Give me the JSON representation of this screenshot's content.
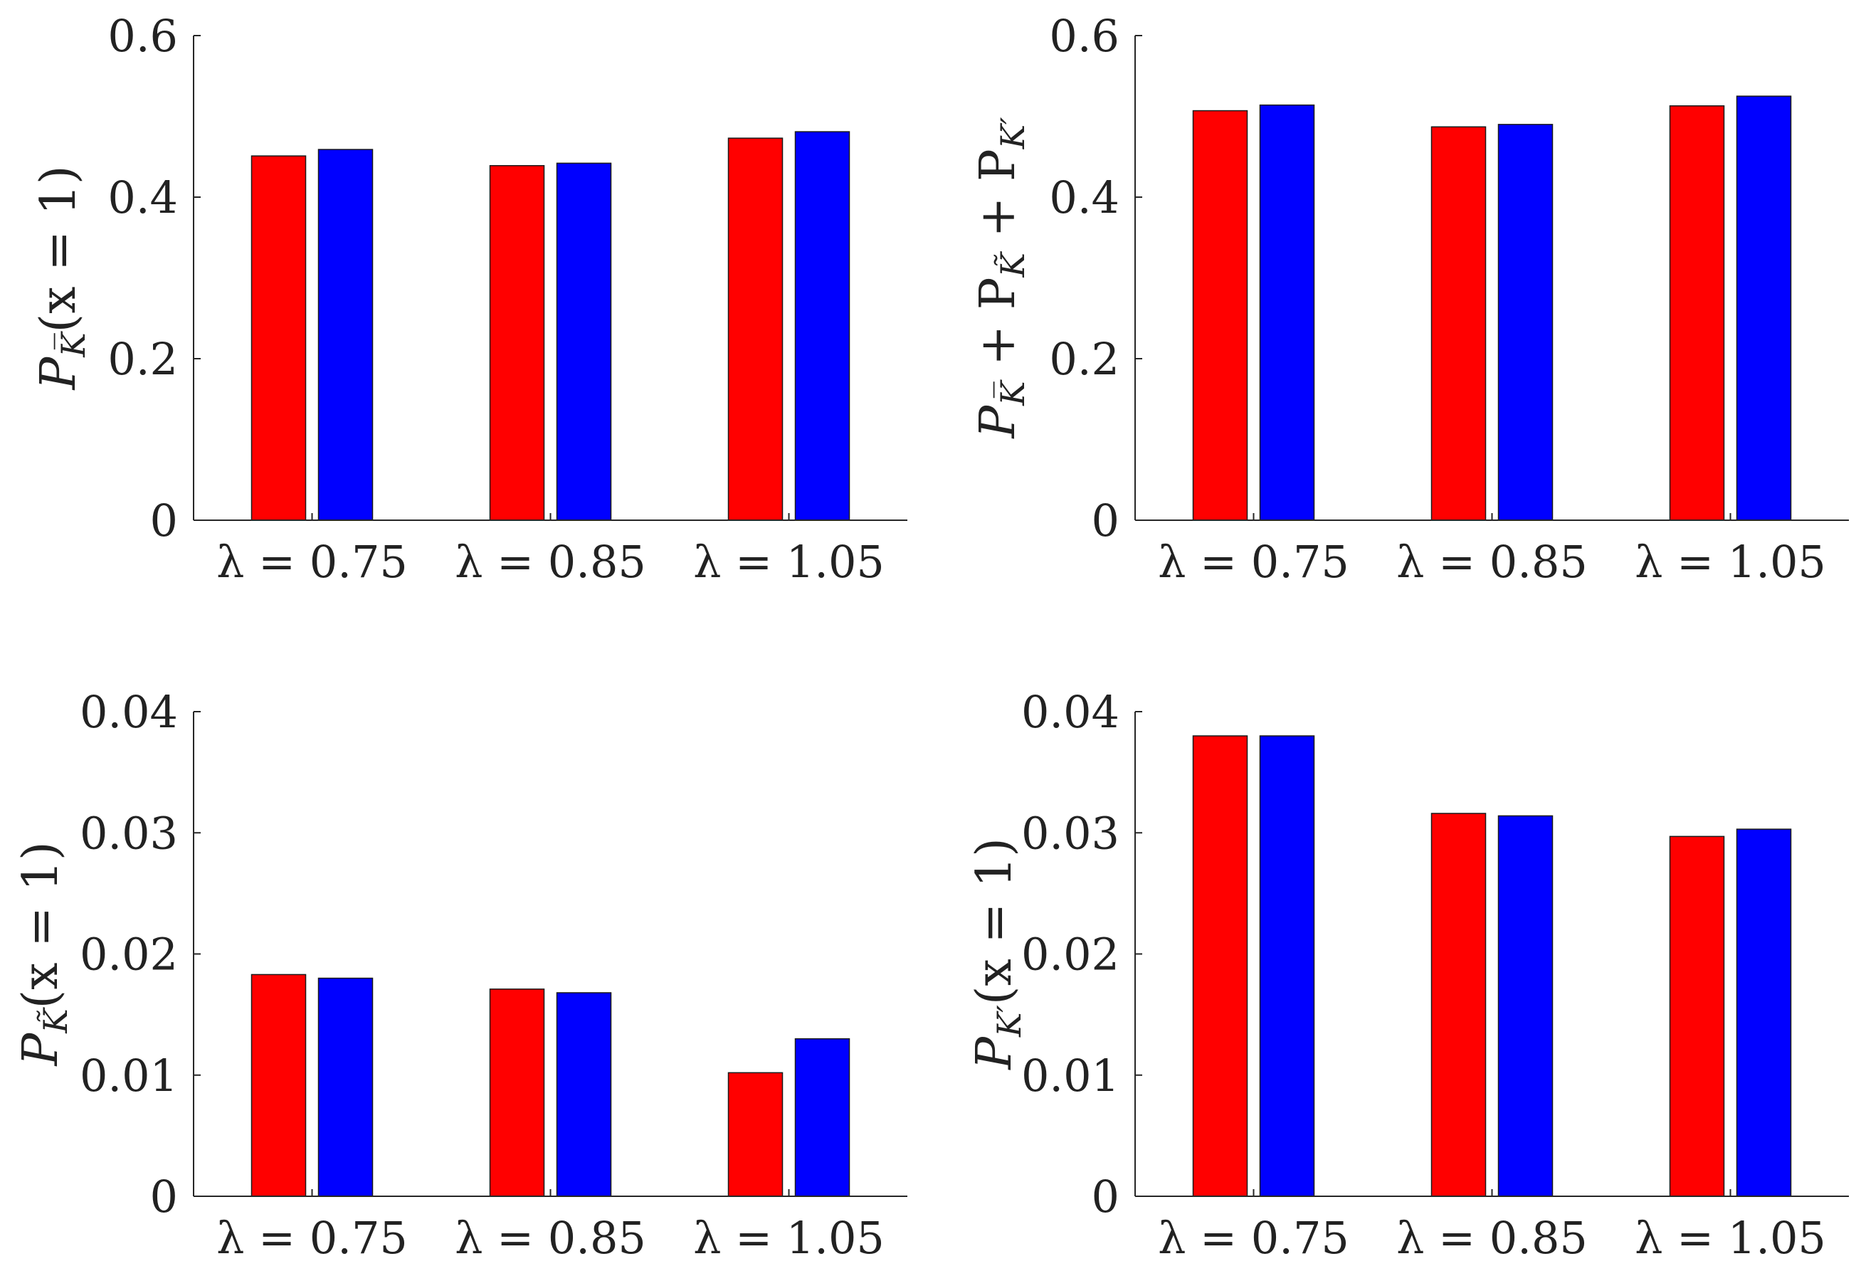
{
  "colors": {
    "series1": "#ff0000",
    "series2": "#0000ff",
    "axis": "#262626",
    "text": "#222222"
  },
  "chart_data": [
    {
      "id": "top-left",
      "type": "bar",
      "categories": [
        "λ = 0.75",
        "λ = 0.85",
        "λ = 1.05"
      ],
      "series": [
        {
          "name": "red",
          "color": "#ff0000",
          "values": [
            0.451,
            0.439,
            0.473
          ]
        },
        {
          "name": "blue",
          "color": "#0000ff",
          "values": [
            0.459,
            0.442,
            0.481
          ]
        }
      ],
      "ylim": [
        0,
        0.6
      ],
      "yticks": [
        "0",
        "0.2",
        "0.4",
        "0.6"
      ],
      "yticks_values": [
        0,
        0.2,
        0.4,
        0.6
      ],
      "ylabel": {
        "main": "P",
        "sub": "K̅",
        "rest": "(x = 1)"
      }
    },
    {
      "id": "top-right",
      "type": "bar",
      "categories": [
        "λ = 0.75",
        "λ = 0.85",
        "λ = 1.05"
      ],
      "series": [
        {
          "name": "red",
          "color": "#ff0000",
          "values": [
            0.507,
            0.487,
            0.513
          ]
        },
        {
          "name": "blue",
          "color": "#0000ff",
          "values": [
            0.514,
            0.49,
            0.525
          ]
        }
      ],
      "ylim": [
        0,
        0.6
      ],
      "yticks": [
        "0",
        "0.2",
        "0.4",
        "0.6"
      ],
      "yticks_values": [
        0,
        0.2,
        0.4,
        0.6
      ],
      "ylabel": {
        "main": "P",
        "sub": "K̅",
        "rest": " + P",
        "sub2": "K̃",
        "rest2": " + P",
        "sub3": "K′",
        "rest3": ""
      }
    },
    {
      "id": "bottom-left",
      "type": "bar",
      "categories": [
        "λ = 0.75",
        "λ = 0.85",
        "λ = 1.05"
      ],
      "series": [
        {
          "name": "red",
          "color": "#ff0000",
          "values": [
            0.0183,
            0.0171,
            0.0102
          ]
        },
        {
          "name": "blue",
          "color": "#0000ff",
          "values": [
            0.018,
            0.0168,
            0.013
          ]
        }
      ],
      "ylim": [
        0,
        0.04
      ],
      "yticks": [
        "0",
        "0.01",
        "0.02",
        "0.03",
        "0.04"
      ],
      "yticks_values": [
        0,
        0.01,
        0.02,
        0.03,
        0.04
      ],
      "ylabel": {
        "main": "P",
        "sub": "K̃",
        "rest": "(x = 1)"
      }
    },
    {
      "id": "bottom-right",
      "type": "bar",
      "categories": [
        "λ = 0.75",
        "λ = 0.85",
        "λ = 1.05"
      ],
      "series": [
        {
          "name": "red",
          "color": "#ff0000",
          "values": [
            0.038,
            0.0316,
            0.0297
          ]
        },
        {
          "name": "blue",
          "color": "#0000ff",
          "values": [
            0.038,
            0.0314,
            0.0303
          ]
        }
      ],
      "ylim": [
        0,
        0.04
      ],
      "yticks": [
        "0",
        "0.01",
        "0.02",
        "0.03",
        "0.04"
      ],
      "yticks_values": [
        0,
        0.01,
        0.02,
        0.03,
        0.04
      ],
      "ylabel": {
        "main": "P",
        "sub": "K′",
        "rest": "(x = 1)"
      }
    }
  ]
}
